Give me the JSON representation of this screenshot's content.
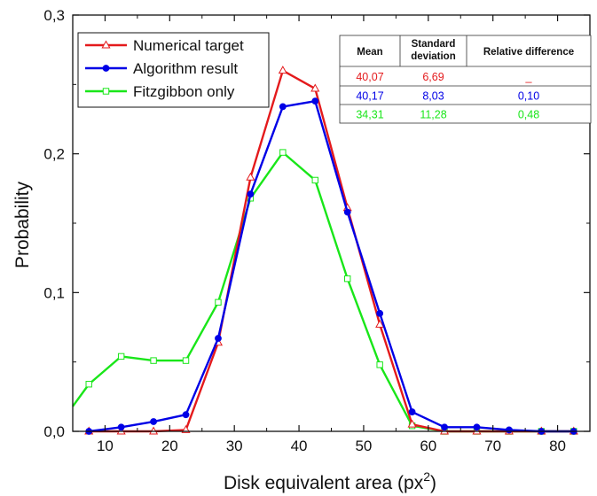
{
  "chart_data": {
    "type": "line",
    "xlabel_main": "Disk equivalent area (px",
    "xlabel_sup": "2",
    "xlabel_end": ")",
    "ylabel": "Probability",
    "xlim": [
      5,
      85
    ],
    "ylim": [
      0,
      0.3
    ],
    "x_ticks": [
      10,
      20,
      30,
      40,
      50,
      60,
      70,
      80
    ],
    "x_tick_labels": [
      "10",
      "20",
      "30",
      "40",
      "50",
      "60",
      "70",
      "80"
    ],
    "y_ticks": [
      0,
      0.1,
      0.2,
      0.3
    ],
    "y_tick_labels": [
      "0,0",
      "0,1",
      "0,2",
      "0,3"
    ],
    "legend_position": "top-left",
    "series": [
      {
        "name": "Numerical target",
        "color": "#e41a1c",
        "marker": "open-triangle",
        "x": [
          7.5,
          12.5,
          17.5,
          22.5,
          27.5,
          32.5,
          37.5,
          42.5,
          47.5,
          52.5,
          57.5,
          62.5,
          67.5,
          72.5,
          77.5,
          82.5
        ],
        "y": [
          0,
          0,
          0,
          0.001,
          0.064,
          0.183,
          0.26,
          0.247,
          0.161,
          0.077,
          0.005,
          0,
          0,
          0,
          0,
          0
        ]
      },
      {
        "name": "Algorithm result",
        "color": "#0000e6",
        "marker": "filled-circle",
        "x": [
          7.5,
          12.5,
          17.5,
          22.5,
          27.5,
          32.5,
          37.5,
          42.5,
          47.5,
          52.5,
          57.5,
          62.5,
          67.5,
          72.5,
          77.5,
          82.5
        ],
        "y": [
          0,
          0.003,
          0.007,
          0.012,
          0.067,
          0.171,
          0.234,
          0.238,
          0.158,
          0.085,
          0.014,
          0.003,
          0.003,
          0.001,
          0,
          0
        ]
      },
      {
        "name": "Fitzgibbon only",
        "color": "#19e619",
        "marker": "open-square",
        "x": [
          5,
          7.5,
          12.5,
          17.5,
          22.5,
          27.5,
          32.5,
          37.5,
          42.5,
          47.5,
          52.5,
          57.5,
          62.5,
          67.5,
          72.5,
          77.5,
          82.5
        ],
        "y": [
          0.018,
          0.034,
          0.054,
          0.051,
          0.051,
          0.093,
          0.168,
          0.201,
          0.181,
          0.11,
          0.048,
          0.004,
          0,
          0,
          0,
          0,
          0
        ],
        "marker_from": 1
      }
    ],
    "stats_table": {
      "headers": [
        [
          "Mean"
        ],
        [
          "Standard",
          "deviation"
        ],
        [
          "Relative difference"
        ]
      ],
      "rows": [
        {
          "mean": "40,07",
          "std": "6,69",
          "rel": "_",
          "color": "#e41a1c"
        },
        {
          "mean": "40,17",
          "std": "8,03",
          "rel": "0,10",
          "color": "#0000e6"
        },
        {
          "mean": "34,31",
          "std": "11,28",
          "rel": "0,48",
          "color": "#19e619"
        }
      ]
    }
  }
}
